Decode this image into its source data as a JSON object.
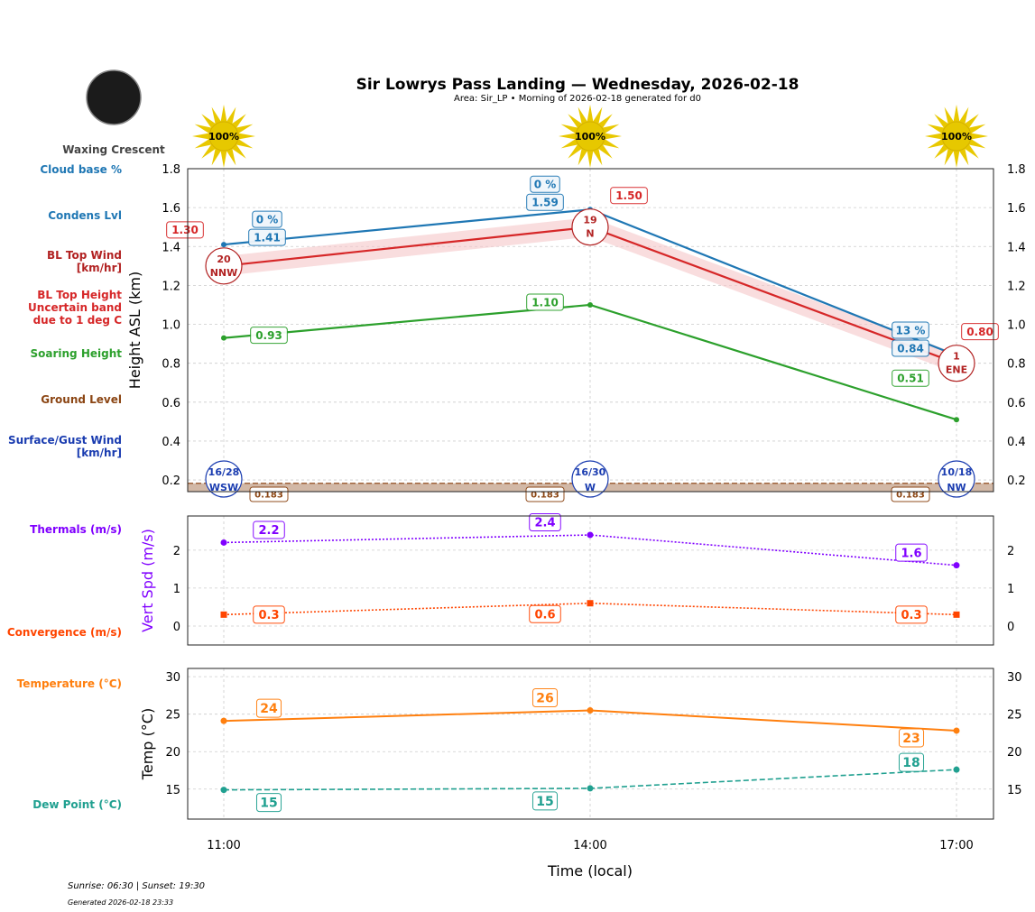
{
  "title": "Sir Lowrys Pass Landing — Wednesday, 2026-02-18",
  "subtitle": "Area: Sir_LP • Morning of 2026-02-18 generated for d0",
  "moon_phase": "Waxing Crescent",
  "footer": {
    "sun": "Sunrise: 06:30 | Sunset: 19:30",
    "generated": "Generated 2026-02-18 23:33"
  },
  "side_labels": [
    {
      "text": "Cloud base %",
      "color": "#1f77b4"
    },
    {
      "text": "Condens Lvl",
      "color": "#1f77b4"
    },
    {
      "text": "BL Top Wind\n[km/hr]",
      "color": "#b22222"
    },
    {
      "text": "BL Top Height\nUncertain band\ndue to 1 deg C",
      "color": "#d62728"
    },
    {
      "text": "Soaring Height",
      "color": "#2ca02c"
    },
    {
      "text": "Ground Level",
      "color": "#8b4513"
    },
    {
      "text": "Surface/Gust Wind\n[km/hr]",
      "color": "#1a3cb0"
    },
    {
      "text": "Thermals (m/s)",
      "color": "#8000ff"
    },
    {
      "text": "Convergence (m/s)",
      "color": "#ff4500"
    },
    {
      "text": "Temperature (°C)",
      "color": "#ff7f0e"
    },
    {
      "text": "Dew Point (°C)",
      "color": "#20a090"
    }
  ],
  "chart_data": [
    {
      "type": "line",
      "ylabel": "Height ASL (km)",
      "ylim": [
        0.14,
        1.8
      ],
      "yticks": [
        "0.2",
        "0.4",
        "0.6",
        "0.8",
        "1.0",
        "1.2",
        "1.4",
        "1.6",
        "1.8"
      ],
      "grid": true,
      "x": [
        "11:00",
        "14:00",
        "17:00"
      ],
      "sun_percent": [
        "100%",
        "100%",
        "100%"
      ],
      "cloud_base_pct": [
        "0 %",
        "0 %",
        "13 %"
      ],
      "series": [
        {
          "name": "Condens Lvl",
          "values": [
            1.41,
            1.59,
            0.84
          ],
          "labels": [
            "1.41",
            "1.59",
            "0.84"
          ],
          "color": "#1f77b4"
        },
        {
          "name": "BL Top Height",
          "values": [
            1.3,
            1.5,
            0.8
          ],
          "labels": [
            "1.30",
            "1.50",
            "0.80"
          ],
          "band": 0.05,
          "color": "#d62728"
        },
        {
          "name": "Soaring Height",
          "values": [
            0.93,
            1.1,
            0.51
          ],
          "labels": [
            "0.93",
            "1.10",
            "0.51"
          ],
          "color": "#2ca02c"
        },
        {
          "name": "Ground Level",
          "values": [
            0.183,
            0.183,
            0.183
          ],
          "labels": [
            "0.183",
            "0.183",
            "0.183"
          ],
          "color": "#8b4513"
        }
      ],
      "bl_top_wind": [
        {
          "speed": "20",
          "dir": "NNW"
        },
        {
          "speed": "19",
          "dir": "N"
        },
        {
          "speed": "1",
          "dir": "ENE"
        }
      ],
      "surface_wind": [
        {
          "speed": "16/28",
          "dir": "WSW"
        },
        {
          "speed": "16/30",
          "dir": "W"
        },
        {
          "speed": "10/18",
          "dir": "NW"
        }
      ]
    },
    {
      "type": "line",
      "ylabel": "Vert Spd (m/s)",
      "ylim": [
        -0.5,
        2.9
      ],
      "yticks": [
        "0",
        "1",
        "2"
      ],
      "grid": true,
      "x": [
        "11:00",
        "14:00",
        "17:00"
      ],
      "series": [
        {
          "name": "Thermals (m/s)",
          "values": [
            2.2,
            2.4,
            1.6
          ],
          "labels": [
            "2.2",
            "2.4",
            "1.6"
          ],
          "color": "#8000ff"
        },
        {
          "name": "Convergence (m/s)",
          "values": [
            0.3,
            0.6,
            0.3
          ],
          "labels": [
            "0.3",
            "0.6",
            "0.3"
          ],
          "color": "#ff4500"
        }
      ]
    },
    {
      "type": "line",
      "ylabel": "Temp (°C)",
      "xlabel": "Time (local)",
      "ylim": [
        11,
        31.1
      ],
      "yticks": [
        "15",
        "20",
        "25",
        "30"
      ],
      "grid": true,
      "x": [
        "11:00",
        "14:00",
        "17:00"
      ],
      "series": [
        {
          "name": "Temperature (°C)",
          "values": [
            24.1,
            25.5,
            22.8
          ],
          "labels": [
            "24",
            "26",
            "23"
          ],
          "color": "#ff7f0e"
        },
        {
          "name": "Dew Point (°C)",
          "values": [
            14.9,
            15.1,
            17.6
          ],
          "labels": [
            "15",
            "15",
            "18"
          ],
          "color": "#20a090"
        }
      ]
    }
  ]
}
